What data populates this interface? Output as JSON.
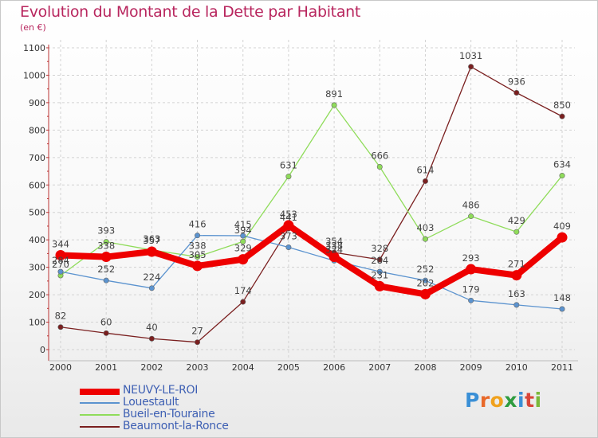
{
  "header": {
    "title": "Evolution du Montant de la Dette par Habitant",
    "subtitle": "(en €)"
  },
  "logo": {
    "text": "Proxiti",
    "colors": [
      "#3a8fd6",
      "#e8692a",
      "#f0a21e",
      "#2f9c3f",
      "#3a8fd6",
      "#d8463a",
      "#7ab83a"
    ]
  },
  "chart_data": {
    "type": "line",
    "x": [
      "2000",
      "2001",
      "2002",
      "2003",
      "2004",
      "2005",
      "2006",
      "2007",
      "2008",
      "2009",
      "2010",
      "2011"
    ],
    "ylim": [
      0,
      1100
    ],
    "yticks": [
      0,
      100,
      200,
      300,
      400,
      500,
      600,
      700,
      800,
      900,
      1000,
      1100
    ],
    "grid": true,
    "legend_position": "bottom-left",
    "series": [
      {
        "name": "NEUVY-LE-ROI",
        "color": "#ee0000",
        "values": [
          344,
          338,
          357,
          305,
          329,
          453,
          338,
          231,
          202,
          293,
          271,
          409
        ],
        "labels": [
          "344",
          "338",
          "357",
          "305",
          "329",
          "453",
          "338",
          "231",
          "202",
          "293",
          "271",
          "409"
        ]
      },
      {
        "name": "Louestault",
        "color": "#5b93cf",
        "values": [
          284,
          252,
          224,
          416,
          415,
          373,
          324,
          284,
          252,
          179,
          163,
          148
        ],
        "labels": [
          "284",
          "252",
          "224",
          "416",
          "415",
          "373",
          "324",
          "284",
          "252",
          "179",
          "163",
          "148"
        ]
      },
      {
        "name": "Bueil-en-Touraine",
        "color": "#8fdc5a",
        "values": [
          270,
          393,
          363,
          338,
          394,
          631,
          891,
          666,
          403,
          486,
          429,
          634
        ],
        "labels": [
          "270",
          "393",
          "363",
          "338",
          "394",
          "631",
          "891",
          "666",
          "403",
          "486",
          "429",
          "634"
        ]
      },
      {
        "name": "Beaumont-la-Ronce",
        "color": "#7a1f1f",
        "values": [
          82,
          60,
          40,
          27,
          174,
          441,
          354,
          328,
          614,
          1031,
          936,
          850
        ],
        "labels": [
          "82",
          "60",
          "40",
          "27",
          "174",
          "441",
          "354",
          "328",
          "614",
          "1031",
          "936",
          "850"
        ]
      }
    ]
  }
}
